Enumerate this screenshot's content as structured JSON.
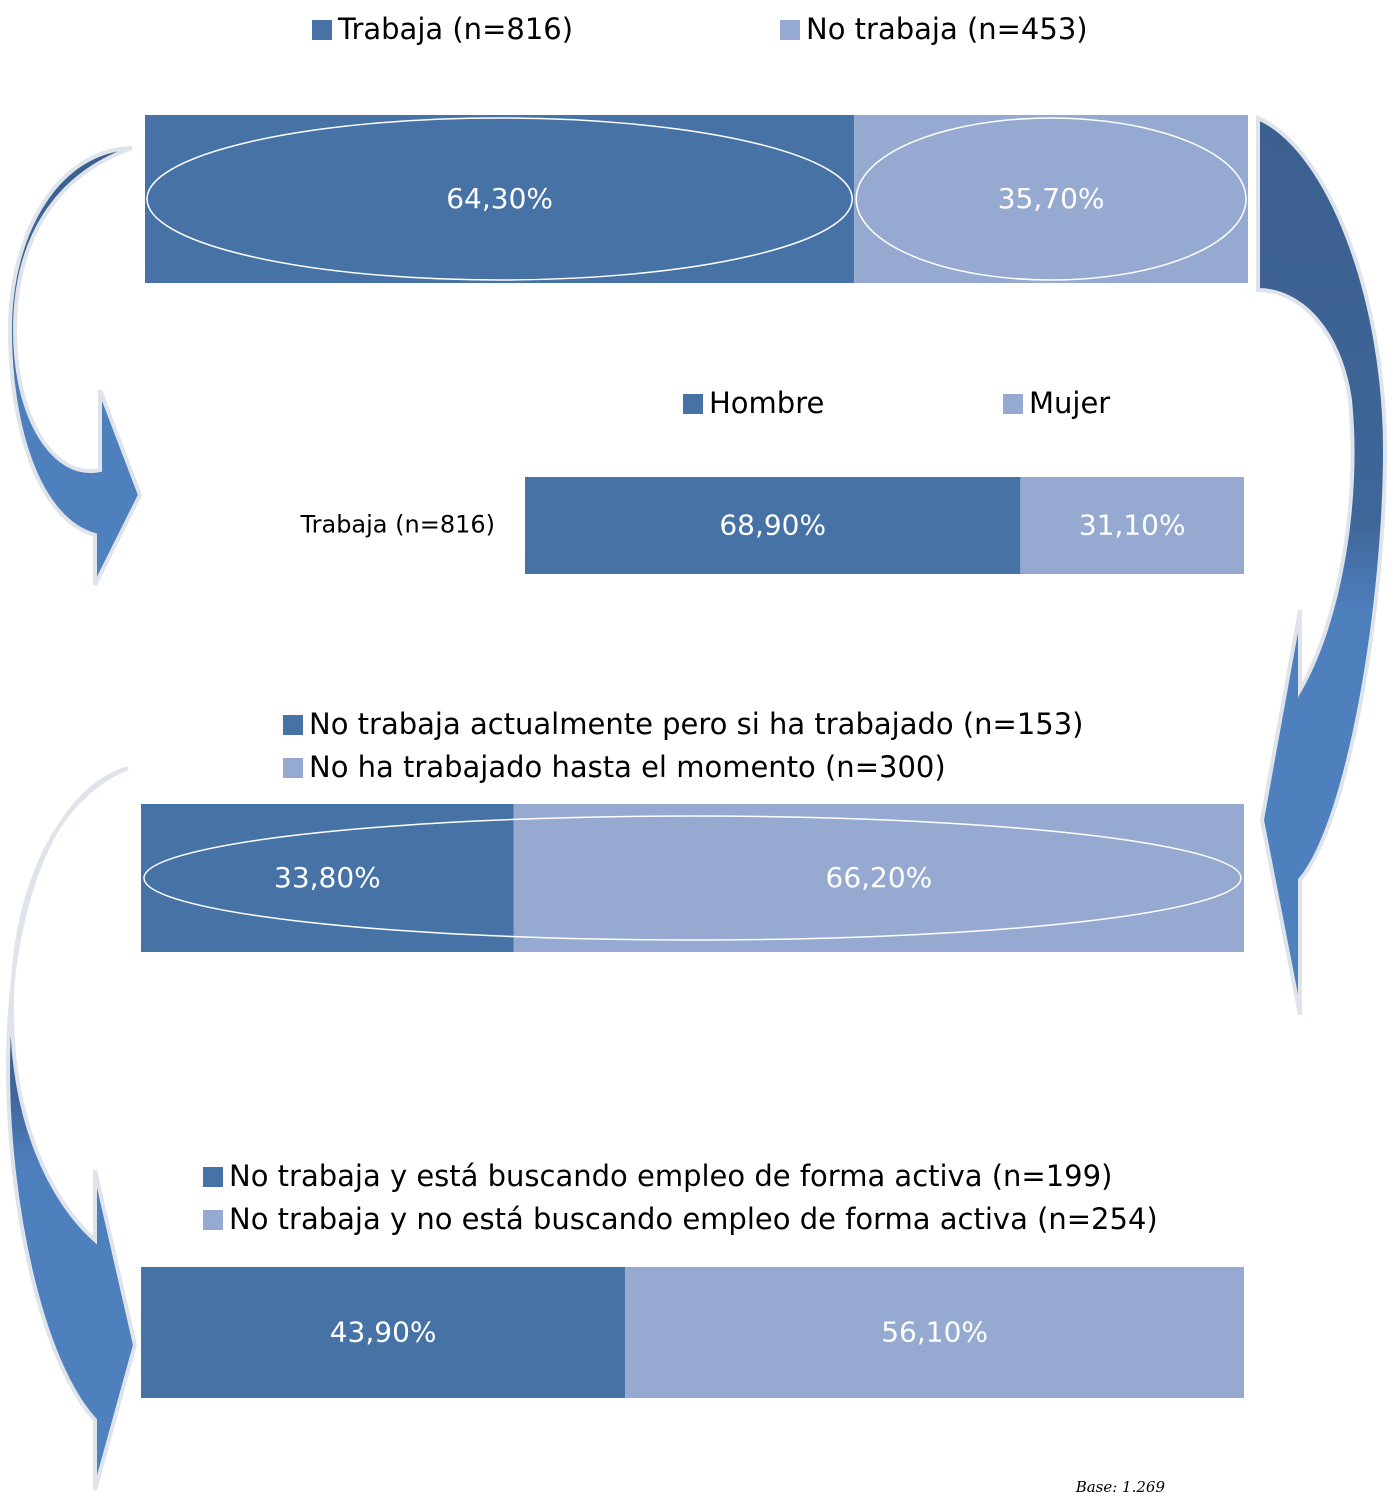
{
  "chart_data": [
    {
      "type": "bar",
      "series": [
        {
          "name": "Trabaja (n=816)",
          "color": "#4672a6",
          "values": [
            64.3
          ],
          "value_labels": [
            "64,30%"
          ]
        },
        {
          "name": "No trabaja (n=453)",
          "color": "#95a9d1",
          "values": [
            35.7
          ],
          "value_labels": [
            "35,70%"
          ]
        }
      ]
    },
    {
      "type": "bar",
      "categories": [
        "Trabaja (n=816)"
      ],
      "series": [
        {
          "name": "Hombre",
          "color": "#4672a6",
          "values": [
            68.9
          ],
          "value_labels": [
            "68,90%"
          ]
        },
        {
          "name": "Mujer",
          "color": "#95a9d1",
          "values": [
            31.1
          ],
          "value_labels": [
            "31,10%"
          ]
        }
      ]
    },
    {
      "type": "bar",
      "series": [
        {
          "name": "No trabaja actualmente pero si ha trabajado (n=153)",
          "color": "#4672a6",
          "values": [
            33.8
          ],
          "value_labels": [
            "33,80%"
          ]
        },
        {
          "name": "No ha trabajado hasta el momento (n=300)",
          "color": "#95a9d1",
          "values": [
            66.2
          ],
          "value_labels": [
            "66,20%"
          ]
        }
      ]
    },
    {
      "type": "bar",
      "series": [
        {
          "name": "No trabaja y está buscando empleo de forma activa (n=199)",
          "color": "#4672a6",
          "values": [
            43.9
          ],
          "value_labels": [
            "43,90%"
          ]
        },
        {
          "name": "No trabaja y no está buscando empleo de forma activa (n=254)",
          "color": "#95a9d1",
          "values": [
            56.1
          ],
          "value_labels": [
            "56,10%"
          ]
        }
      ]
    }
  ],
  "note": "Base: 1.269"
}
